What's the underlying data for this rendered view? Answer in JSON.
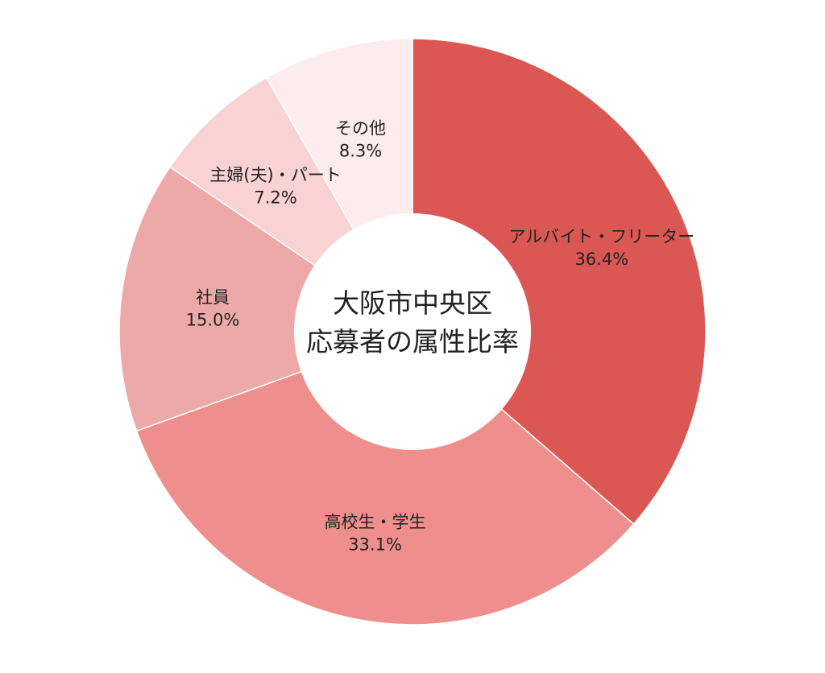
{
  "chart_data": {
    "type": "pie",
    "title_lines": [
      "大阪市中央区",
      "応募者の属性比率"
    ],
    "slices": [
      {
        "label": "アルバイト・フリーター",
        "value": 36.4,
        "value_text": "36.4%",
        "color": "#db5753"
      },
      {
        "label": "高校生・学生",
        "value": 33.1,
        "value_text": "33.1%",
        "color": "#ee8f8d"
      },
      {
        "label": "社員",
        "value": 15.0,
        "value_text": "15.0%",
        "color": "#eda9a7"
      },
      {
        "label": "主婦(夫)・パート",
        "value": 7.2,
        "value_text": "7.2%",
        "color": "#f9d3d3"
      },
      {
        "label": "その他",
        "value": 8.3,
        "value_text": "8.3%",
        "color": "#fdeced"
      }
    ]
  }
}
